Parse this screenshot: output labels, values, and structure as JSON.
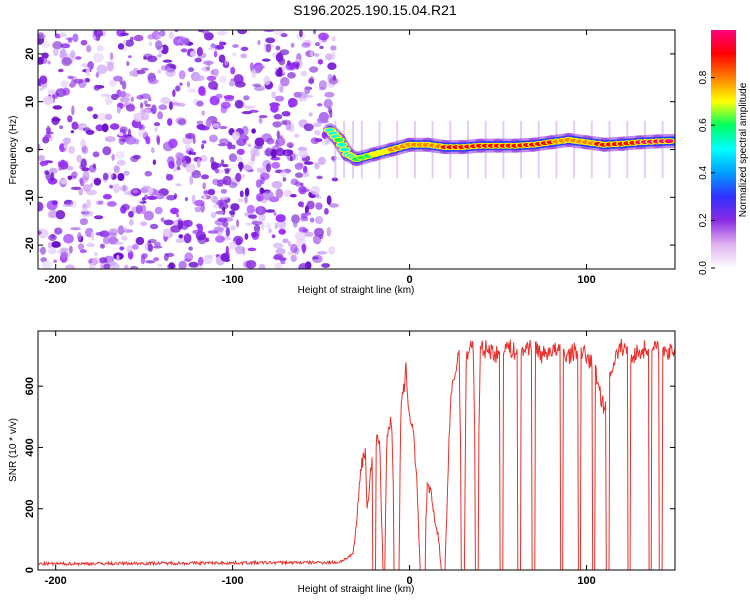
{
  "title": "S196.2025.190.15.04.R21",
  "chart_data": [
    {
      "type": "heatmap",
      "xlabel": "Height of straight line (km)",
      "ylabel": "Frequency (Hz)",
      "xlim": [
        -210,
        150
      ],
      "ylim": [
        -25,
        25
      ],
      "xticks": [
        -200,
        -100,
        0,
        100
      ],
      "yticks": [
        -20,
        -10,
        0,
        10,
        20
      ],
      "colorbar": {
        "label": "Normalized spectral amplitude",
        "range": [
          0,
          1
        ],
        "ticks": [
          0.0,
          0.2,
          0.4,
          0.6,
          0.8
        ],
        "colors": [
          "#ffffff",
          "#e0b0f0",
          "#8a2be2",
          "#3030ff",
          "#00a0ff",
          "#00ffff",
          "#00ff60",
          "#ffff00",
          "#ff8000",
          "#ff0000",
          "#ff0080"
        ]
      },
      "noise_region_x": [
        -210,
        -42
      ],
      "signal_track": {
        "x": [
          -45,
          -40,
          -35,
          -30,
          -20,
          -10,
          0,
          10,
          20,
          30,
          40,
          50,
          60,
          70,
          80,
          90,
          100,
          110,
          120,
          130,
          140,
          150
        ],
        "frequency": [
          4,
          2,
          -1,
          -2,
          -1,
          0,
          1,
          1,
          0.5,
          0.5,
          0.8,
          0.8,
          0.8,
          1,
          1.5,
          2,
          1.5,
          1,
          1.2,
          1.5,
          1.7,
          1.8
        ],
        "amplitude": [
          0.5,
          0.55,
          0.5,
          0.55,
          0.65,
          0.75,
          0.8,
          0.78,
          0.85,
          0.85,
          0.9,
          0.9,
          0.9,
          0.88,
          0.85,
          0.8,
          0.82,
          0.9,
          0.9,
          0.95,
          0.95,
          0.95
        ]
      }
    },
    {
      "type": "line",
      "xlabel": "Height of straight line (km)",
      "ylabel": "SNR (10 * v/v)",
      "xlim": [
        -210,
        150
      ],
      "ylim": [
        0,
        780
      ],
      "xticks": [
        -200,
        -100,
        0,
        100
      ],
      "yticks": [
        0,
        200,
        400,
        600
      ],
      "line_color": "#e8312c",
      "series": [
        {
          "x": [
            -210,
            -40,
            -32,
            -30,
            -28,
            -27,
            -25,
            -24,
            -20,
            -17,
            -15,
            -14,
            -13,
            -12,
            -10,
            -8,
            -6,
            -5,
            -4,
            -3,
            -2,
            0,
            2,
            4,
            6,
            8,
            10,
            12,
            13,
            14,
            16,
            18,
            20,
            23,
            25,
            26,
            27,
            28,
            30,
            31,
            32,
            34,
            35,
            36,
            38,
            40,
            45,
            50,
            55,
            60,
            65,
            70,
            75,
            80,
            85,
            90,
            95,
            100,
            105,
            110,
            115,
            120,
            125,
            130,
            135,
            140,
            145,
            150
          ],
          "y": [
            20,
            25,
            50,
            150,
            300,
            360,
            380,
            200,
            420,
            430,
            0,
            0,
            410,
            480,
            470,
            0,
            0,
            500,
            560,
            600,
            650,
            500,
            470,
            300,
            0,
            0,
            270,
            260,
            200,
            170,
            120,
            0,
            0,
            540,
            620,
            650,
            690,
            710,
            0,
            0,
            700,
            730,
            740,
            720,
            0,
            720,
            720,
            700,
            730,
            710,
            720,
            740,
            700,
            720,
            710,
            700,
            720,
            700,
            650,
            520,
            680,
            730,
            700,
            710,
            730,
            720,
            700,
            720
          ]
        }
      ],
      "dropouts_x": [
        -20,
        -8,
        8,
        19,
        30,
        38,
        52,
        62,
        70,
        86,
        96,
        104,
        112,
        124,
        136,
        142
      ]
    }
  ]
}
